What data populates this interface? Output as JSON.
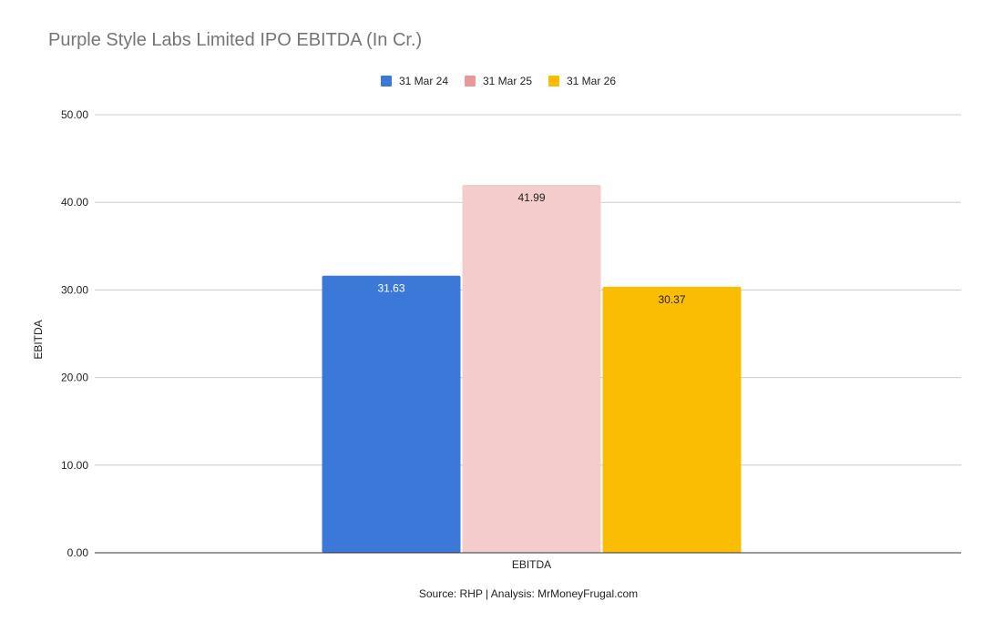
{
  "chart_data": {
    "type": "bar",
    "title": "Purple Style Labs Limited IPO EBITDA (In Cr.)",
    "categories": [
      "EBITDA"
    ],
    "series": [
      {
        "name": "31 Mar 24",
        "values": [
          31.63
        ],
        "data_label": "31.63",
        "color": "#3c78d8",
        "label_color": "#ffffff"
      },
      {
        "name": "31 Mar 25",
        "values": [
          41.99
        ],
        "data_label": "41.99",
        "color": "#f4cccc",
        "label_color": "#222222"
      },
      {
        "name": "31 Mar 26",
        "values": [
          30.37
        ],
        "data_label": "30.37",
        "color": "#fbbc04",
        "label_color": "#222222"
      }
    ],
    "legend_swatch_colors": [
      "#3c78d8",
      "#ea9999",
      "#fbbc04"
    ],
    "ylabel": "EBITDA",
    "ylim": [
      0,
      50
    ],
    "yticks": [
      0,
      10,
      20,
      30,
      40,
      50
    ],
    "ytick_labels": [
      "0.00",
      "10.00",
      "20.00",
      "30.00",
      "40.00",
      "50.00"
    ],
    "grid": true,
    "legend_position": "top-center",
    "source_note": "Source: RHP | Analysis: MrMoneyFrugal.com"
  }
}
